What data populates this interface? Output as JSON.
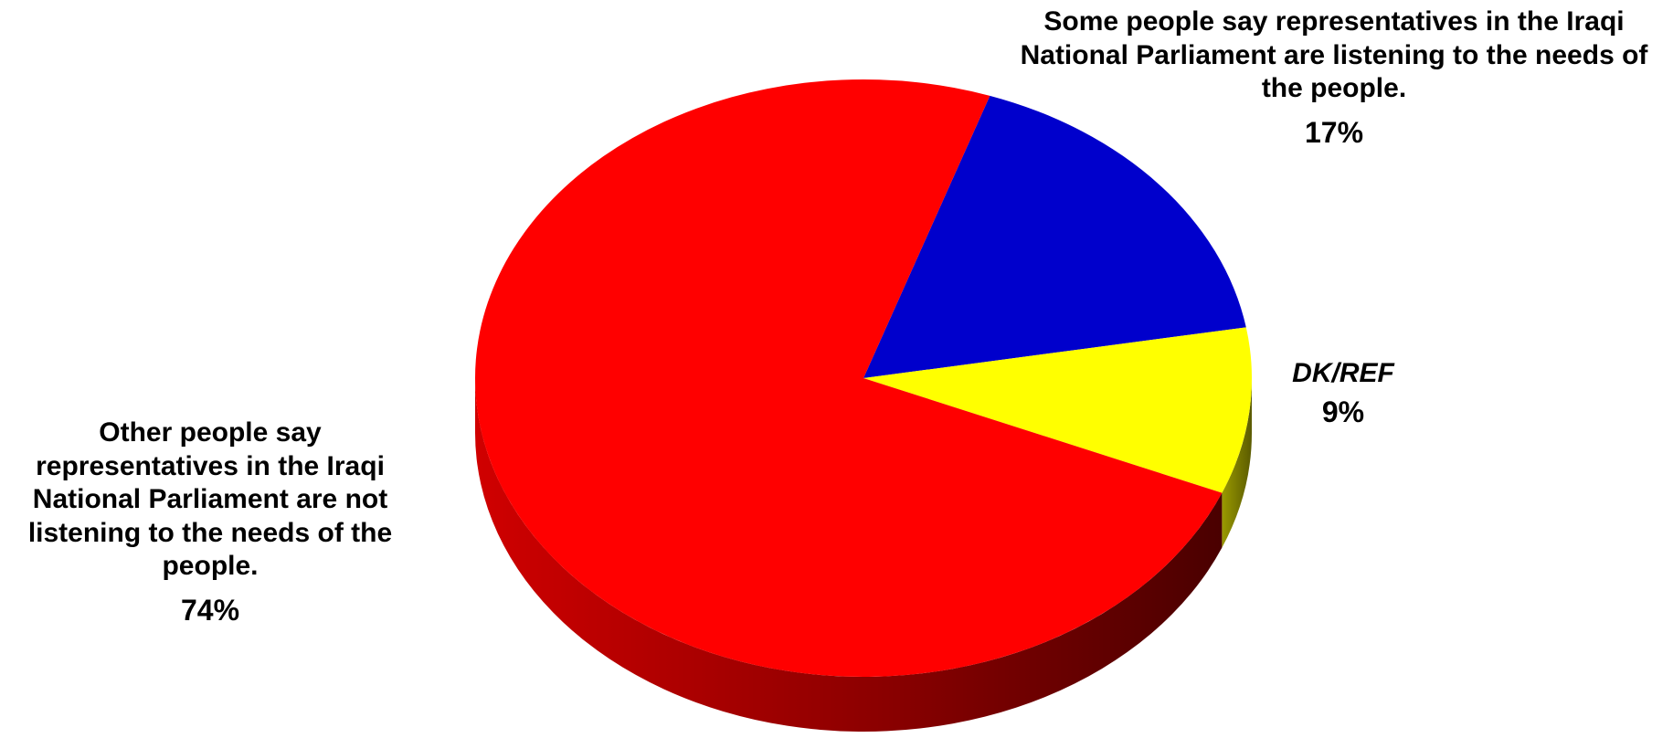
{
  "chart_data": {
    "type": "pie",
    "three_d": true,
    "title": "",
    "slices": [
      {
        "label": "Some people say representatives in the Iraqi National Parliament are listening to the needs of the people.",
        "value": 17,
        "display": "17%",
        "color": "#0000cc"
      },
      {
        "label": "DK/REF",
        "value": 9,
        "display": "9%",
        "color": "#ffff00"
      },
      {
        "label": "Other people say representatives in the Iraqi National Parliament are not listening to the needs of the people.",
        "value": 74,
        "display": "74%",
        "color": "#ff0000"
      }
    ]
  }
}
